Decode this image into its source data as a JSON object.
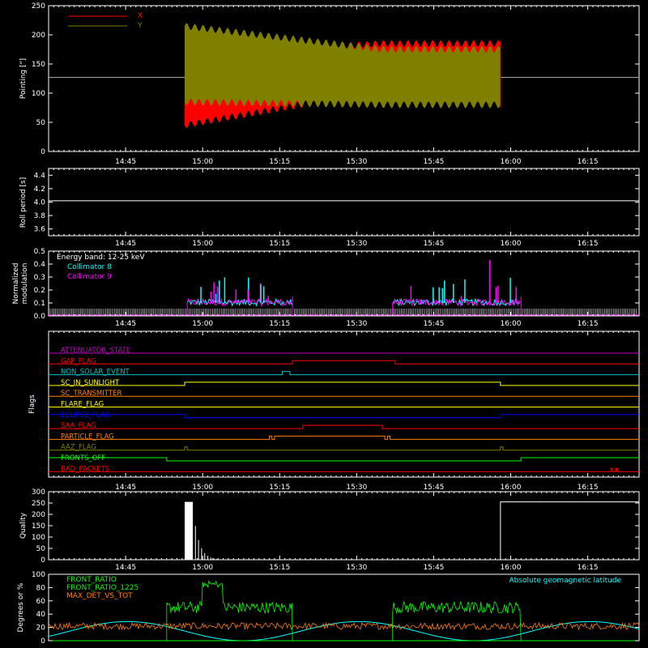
{
  "time_axis": {
    "ticks": [
      "14:45",
      "15:00",
      "15:15",
      "15:30",
      "15:45",
      "16:00",
      "16:15"
    ],
    "tick_minutes": [
      885,
      900,
      915,
      930,
      945,
      960,
      975
    ],
    "range_minutes": [
      870,
      985
    ]
  },
  "chart_data": [
    {
      "type": "line",
      "ylabel": "Pointing [\"]",
      "ylim": [
        0,
        250
      ],
      "yticks": [
        "0",
        "50",
        "100",
        "150",
        "200",
        "250"
      ],
      "yticks_values": [
        0,
        50,
        100,
        150,
        200,
        250
      ],
      "legend": [
        {
          "name": "X",
          "color": "#ff0000"
        },
        {
          "name": "Y",
          "color": "#808000"
        }
      ],
      "baseline": 127,
      "data_window_minutes": [
        896.5,
        958
      ],
      "series": [
        {
          "name": "X",
          "color": "#ff0000",
          "envelope_start": [
            45,
            165
          ],
          "envelope_end": [
            105,
            185
          ]
        },
        {
          "name": "Y",
          "color": "#808000",
          "envelope_start": [
            85,
            215
          ],
          "envelope_end": [
            80,
            175
          ]
        }
      ]
    },
    {
      "type": "line",
      "ylabel": "Roll period [s]",
      "ylim": [
        3.5,
        4.5
      ],
      "yticks": [
        "3.6",
        "3.8",
        "4.0",
        "4.2",
        "4.4"
      ],
      "yticks_values": [
        3.6,
        3.8,
        4.0,
        4.2,
        4.4
      ],
      "series": [
        {
          "name": "",
          "color": "#ffffff",
          "value": 4.02
        }
      ]
    },
    {
      "type": "line",
      "ylabel_lines": [
        "Normalized",
        "modulation"
      ],
      "ylim": [
        0,
        0.5
      ],
      "yticks": [
        "0.0",
        "0.1",
        "0.2",
        "0.3",
        "0.4",
        "0.5"
      ],
      "yticks_values": [
        0,
        0.1,
        0.2,
        0.3,
        0.4,
        0.5
      ],
      "legend": [
        {
          "name": "Energy band: 12-25 keV",
          "color": "#ffffff"
        },
        {
          "name": "Collimator 8",
          "color": "#00ffff"
        },
        {
          "name": "Collimator 9",
          "color": "#ff00ff"
        }
      ],
      "active_intervals_minutes": [
        [
          897,
          917.5
        ],
        [
          937,
          962
        ]
      ],
      "level": 0.1
    },
    {
      "type": "line",
      "ylabel": "Flags",
      "flags": [
        {
          "name": "ATTENUATOR_STATE",
          "color": "#c000c0",
          "segments": []
        },
        {
          "name": "GAP_FLAG",
          "color": "#ff0000",
          "segments": [
            [
              917.5,
              937.5
            ]
          ]
        },
        {
          "name": "NON_SOLAR_EVENT",
          "color": "#00c0c0",
          "segments": [
            [
              915.5,
              917
            ]
          ]
        },
        {
          "name": "SC_IN_SUNLIGHT",
          "color": "#ffff00",
          "segments": [
            [
              896.5,
              958
            ]
          ]
        },
        {
          "name": "SC_TRANSMITTER",
          "color": "#ff8000",
          "segments": []
        },
        {
          "name": "FLARE_FLAG",
          "color": "#ffff00",
          "segments": []
        },
        {
          "name": "ECLIPSE_FLAG",
          "color": "#0000ff",
          "segments": [
            [
              870,
              896.5
            ],
            [
              958,
              985
            ]
          ]
        },
        {
          "name": "SAA_FLAG",
          "color": "#ff0000",
          "segments": [
            [
              919.5,
              935
            ]
          ]
        },
        {
          "name": "PARTICLE_FLAG",
          "color": "#ff8000",
          "segments": [
            [
              913,
              913.5
            ],
            [
              914,
              935.5
            ],
            [
              936,
              936.5
            ]
          ]
        },
        {
          "name": "AAZ_FLAG",
          "color": "#808000",
          "segments": [
            [
              896.5,
              897
            ],
            [
              958,
              958.5
            ]
          ]
        },
        {
          "name": "FRONTS_OFF",
          "color": "#00ff00",
          "segments": [
            [
              870,
              893
            ],
            [
              962,
              985
            ]
          ]
        },
        {
          "name": "BAD_PACKETS",
          "color": "#ff0000",
          "segments": [
            [
              979.5,
              979.8
            ],
            [
              980.5,
              980.8
            ]
          ]
        }
      ]
    },
    {
      "type": "line",
      "ylabel": "Quality",
      "ylim": [
        0,
        300
      ],
      "yticks": [
        "0",
        "50",
        "100",
        "150",
        "200",
        "250",
        "300"
      ],
      "yticks_values": [
        0,
        50,
        100,
        150,
        200,
        250,
        300
      ],
      "series": [
        {
          "name": "",
          "color": "#ffffff",
          "spike_start": 255,
          "spike_window": [
            896.5,
            898
          ],
          "decay_end": 903,
          "plateau_window": [
            958,
            985
          ],
          "plateau_value": 255
        }
      ]
    },
    {
      "type": "line",
      "ylabel": "Degrees or %",
      "ylim": [
        0,
        100
      ],
      "yticks": [
        "0",
        "20",
        "40",
        "60",
        "80",
        "100"
      ],
      "yticks_values": [
        0,
        20,
        40,
        60,
        80,
        100
      ],
      "legend_left": [
        {
          "name": "FRONT_RATIO",
          "color": "#00ff00"
        },
        {
          "name": "FRONT_RATIO_1225",
          "color": "#00ff00"
        },
        {
          "name": "MAX_DET_VS_TOT",
          "color": "#ff8000"
        }
      ],
      "legend_right": {
        "name": "Absolute geomagnetic latitude",
        "color": "#00ffff"
      },
      "series": [
        {
          "name": "FRONT_RATIO",
          "color": "#00ff00",
          "level": 50,
          "peak": 85,
          "peak_window": [
            900,
            904
          ],
          "windows": [
            [
              893,
              917.5
            ],
            [
              937,
              962
            ]
          ]
        },
        {
          "name": "MAX_DET_VS_TOT",
          "color": "#ff8000",
          "level": 22
        },
        {
          "name": "Absolute geomagnetic latitude",
          "color": "#00ffff",
          "min": 0,
          "max": 32
        }
      ]
    }
  ]
}
